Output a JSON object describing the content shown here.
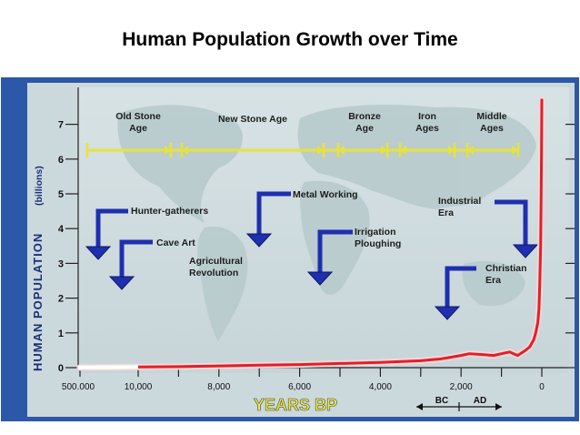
{
  "title": "Human Population Growth over Time",
  "chart_data": {
    "type": "line",
    "title": "Human Population Growth over Time",
    "xlabel": "YEARS BP",
    "ylabel": "HUMAN POPULATION",
    "ylabel_unit": "(billions)",
    "x_reversed": true,
    "x_tick_labels": [
      "500.000",
      "10,000",
      "8,000",
      "6,000",
      "4,000",
      "2,000",
      "0"
    ],
    "y_tick_labels": [
      "0",
      "1",
      "2",
      "3",
      "4",
      "5",
      "6",
      "7"
    ],
    "ylim": [
      0,
      7.8
    ],
    "series": [
      {
        "color": "#e0202a",
        "x": [
          10800,
          10000,
          9000,
          8000,
          7000,
          6000,
          5000,
          4000,
          3000,
          2500,
          2000,
          1800,
          1500,
          1200,
          1000,
          800,
          600,
          400,
          300,
          200,
          150,
          100,
          70,
          50,
          30,
          20,
          10,
          0
        ],
        "y": [
          0.005,
          0.02,
          0.03,
          0.05,
          0.07,
          0.09,
          0.12,
          0.15,
          0.2,
          0.25,
          0.35,
          0.4,
          0.38,
          0.35,
          0.4,
          0.45,
          0.35,
          0.5,
          0.6,
          0.8,
          1.0,
          1.3,
          1.7,
          2.5,
          3.5,
          4.5,
          6.0,
          7.7
        ]
      }
    ],
    "eras": [
      {
        "label_lines": [
          "Old Stone",
          "Age"
        ]
      },
      {
        "label_lines": [
          "New Stone Age"
        ]
      },
      {
        "label_lines": [
          "Bronze",
          "Age"
        ]
      },
      {
        "label_lines": [
          "Iron",
          "Ages"
        ]
      },
      {
        "label_lines": [
          "Middle",
          "Ages"
        ]
      }
    ],
    "annotations": [
      {
        "label_lines": [
          "Hunter-gatherers"
        ]
      },
      {
        "label_lines": [
          "Cave Art"
        ]
      },
      {
        "label_lines": [
          "Agricultural",
          "Revolution"
        ]
      },
      {
        "label_lines": [
          "Metal Working"
        ]
      },
      {
        "label_lines": [
          "Irrigation",
          "Ploughing"
        ]
      },
      {
        "label_lines": [
          "Industrial",
          "Era"
        ]
      },
      {
        "label_lines": [
          "Christian",
          "Era"
        ]
      }
    ],
    "era_marker_labels": [
      "BC",
      "AD"
    ],
    "grid": false,
    "legend": "none"
  }
}
